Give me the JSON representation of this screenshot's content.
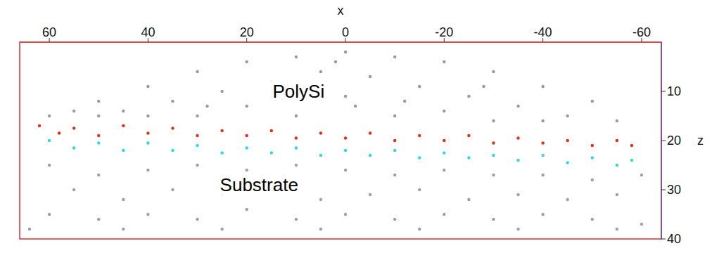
{
  "chart_data": {
    "type": "scatter",
    "x_label": "x",
    "y_label": "z",
    "xlim": [
      66,
      -64
    ],
    "xticks": [
      60,
      40,
      20,
      0,
      -20,
      -40,
      -60
    ],
    "ylim": [
      0,
      40
    ],
    "yticks": [
      10,
      20,
      30,
      40
    ],
    "grid": false,
    "annotations": [
      {
        "text": "PolySi",
        "x": 9.5,
        "y": 10
      },
      {
        "text": "Substrate",
        "x": 17.5,
        "y": 29
      }
    ],
    "series": [
      {
        "color": "#9a9a9a",
        "marker": "dot",
        "values": [
          [
            50,
            12
          ],
          [
            40,
            9
          ],
          [
            30,
            6
          ],
          [
            20,
            4
          ],
          [
            10,
            3
          ],
          [
            0,
            2
          ],
          [
            -10,
            3
          ],
          [
            -20,
            4
          ],
          [
            -30,
            6
          ],
          [
            -40,
            9
          ],
          [
            -50,
            12
          ],
          [
            45,
            14
          ],
          [
            35,
            12
          ],
          [
            25,
            10
          ],
          [
            15,
            8
          ],
          [
            5,
            6
          ],
          [
            -5,
            7
          ],
          [
            -15,
            9
          ],
          [
            -25,
            11
          ],
          [
            -35,
            13
          ],
          [
            -45,
            15
          ],
          [
            55,
            14
          ],
          [
            40,
            15
          ],
          [
            20,
            13
          ],
          [
            0,
            11
          ],
          [
            -20,
            14
          ],
          [
            -40,
            16
          ],
          [
            30,
            15
          ],
          [
            10,
            15
          ],
          [
            -10,
            15
          ],
          [
            -30,
            16
          ],
          [
            -55,
            16
          ],
          [
            60,
            15
          ],
          [
            50,
            15
          ],
          [
            2,
            4
          ],
          [
            -2,
            13
          ],
          [
            -12,
            12
          ],
          [
            12,
            11
          ],
          [
            28,
            13
          ],
          [
            -28,
            9
          ]
        ]
      },
      {
        "color": "#e03018",
        "marker": "dot",
        "values": [
          [
            62,
            17
          ],
          [
            55,
            17.5
          ],
          [
            45,
            17
          ],
          [
            35,
            17.5
          ],
          [
            25,
            18
          ],
          [
            15,
            18
          ],
          [
            5,
            18.5
          ],
          [
            -5,
            18.5
          ],
          [
            -15,
            19
          ],
          [
            -25,
            19
          ],
          [
            -35,
            19.5
          ],
          [
            -45,
            20
          ],
          [
            -55,
            20
          ],
          [
            58,
            18.5
          ],
          [
            40,
            18.5
          ],
          [
            20,
            19
          ],
          [
            0,
            19.5
          ],
          [
            -20,
            20
          ],
          [
            -40,
            20.5
          ],
          [
            -58,
            21
          ],
          [
            50,
            19
          ],
          [
            30,
            19
          ],
          [
            10,
            19.5
          ],
          [
            -10,
            20
          ],
          [
            -30,
            20.5
          ],
          [
            -50,
            21
          ]
        ]
      },
      {
        "color": "#30d8e0",
        "marker": "dot",
        "values": [
          [
            60,
            20
          ],
          [
            50,
            20.5
          ],
          [
            40,
            20.5
          ],
          [
            30,
            21
          ],
          [
            20,
            21.5
          ],
          [
            10,
            21.5
          ],
          [
            0,
            22
          ],
          [
            -10,
            22
          ],
          [
            -20,
            22.5
          ],
          [
            -30,
            23
          ],
          [
            -40,
            23
          ],
          [
            -50,
            23.5
          ],
          [
            -58,
            24
          ],
          [
            55,
            21.5
          ],
          [
            35,
            22
          ],
          [
            15,
            22.5
          ],
          [
            -5,
            23
          ],
          [
            -25,
            23.5
          ],
          [
            -45,
            24.5
          ],
          [
            45,
            22
          ],
          [
            25,
            22.5
          ],
          [
            5,
            23
          ],
          [
            -15,
            23.5
          ],
          [
            -35,
            24
          ],
          [
            -55,
            25
          ]
        ]
      },
      {
        "color": "#a0a0a0",
        "marker": "dot",
        "values": [
          [
            60,
            25
          ],
          [
            50,
            27
          ],
          [
            40,
            26
          ],
          [
            30,
            25
          ],
          [
            20,
            26
          ],
          [
            10,
            25
          ],
          [
            0,
            26
          ],
          [
            -10,
            27
          ],
          [
            -20,
            26
          ],
          [
            -30,
            27
          ],
          [
            -40,
            27
          ],
          [
            -50,
            28
          ],
          [
            -60,
            27
          ],
          [
            55,
            30
          ],
          [
            45,
            32
          ],
          [
            35,
            30
          ],
          [
            25,
            31
          ],
          [
            15,
            30
          ],
          [
            5,
            32
          ],
          [
            -5,
            31
          ],
          [
            -15,
            30
          ],
          [
            -25,
            32
          ],
          [
            -35,
            31
          ],
          [
            -45,
            32
          ],
          [
            -55,
            31
          ],
          [
            60,
            35
          ],
          [
            50,
            36
          ],
          [
            40,
            35
          ],
          [
            30,
            36
          ],
          [
            20,
            34
          ],
          [
            10,
            36
          ],
          [
            0,
            35
          ],
          [
            -10,
            36
          ],
          [
            -20,
            35
          ],
          [
            -30,
            36
          ],
          [
            -40,
            35
          ],
          [
            -50,
            36
          ],
          [
            -60,
            37
          ],
          [
            64,
            38
          ],
          [
            45,
            38
          ],
          [
            25,
            38
          ],
          [
            5,
            38
          ],
          [
            -15,
            38
          ],
          [
            -35,
            38
          ],
          [
            -55,
            38
          ]
        ]
      }
    ]
  }
}
